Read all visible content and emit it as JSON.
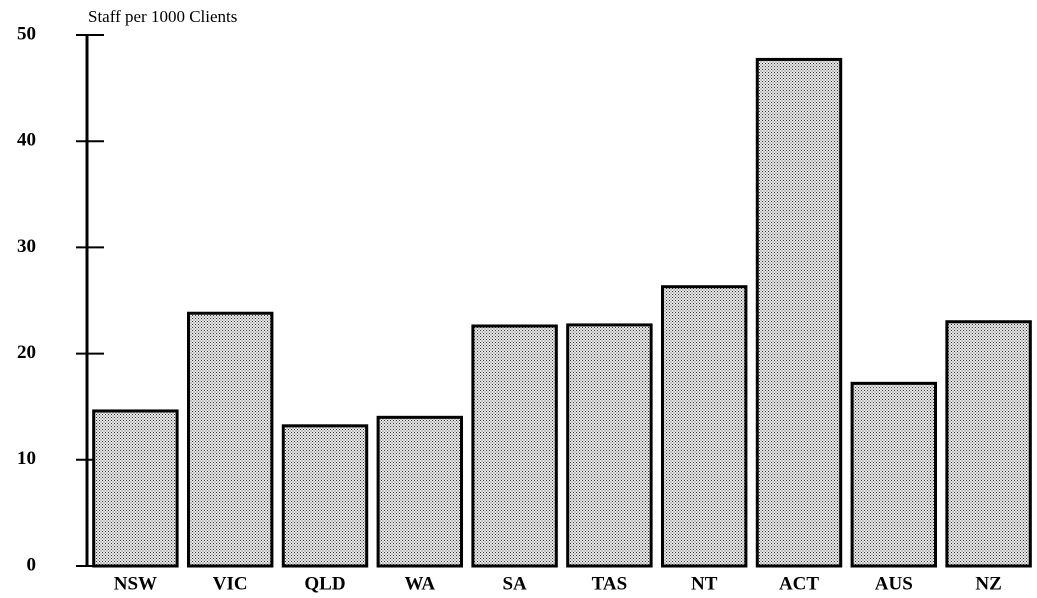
{
  "chart_data": {
    "type": "bar",
    "y_label": "Staff per 1000 Clients",
    "categories": [
      "NSW",
      "VIC",
      "QLD",
      "WA",
      "SA",
      "TAS",
      "NT",
      "ACT",
      "AUS",
      "NZ"
    ],
    "values": [
      14.6,
      23.8,
      13.2,
      14.0,
      22.6,
      22.7,
      26.3,
      47.7,
      17.2,
      23.0
    ],
    "color": "#b0b0b0",
    "ylim": [
      0,
      50
    ],
    "yticks": [
      0,
      10,
      20,
      30,
      40,
      50
    ],
    "grid": false
  }
}
